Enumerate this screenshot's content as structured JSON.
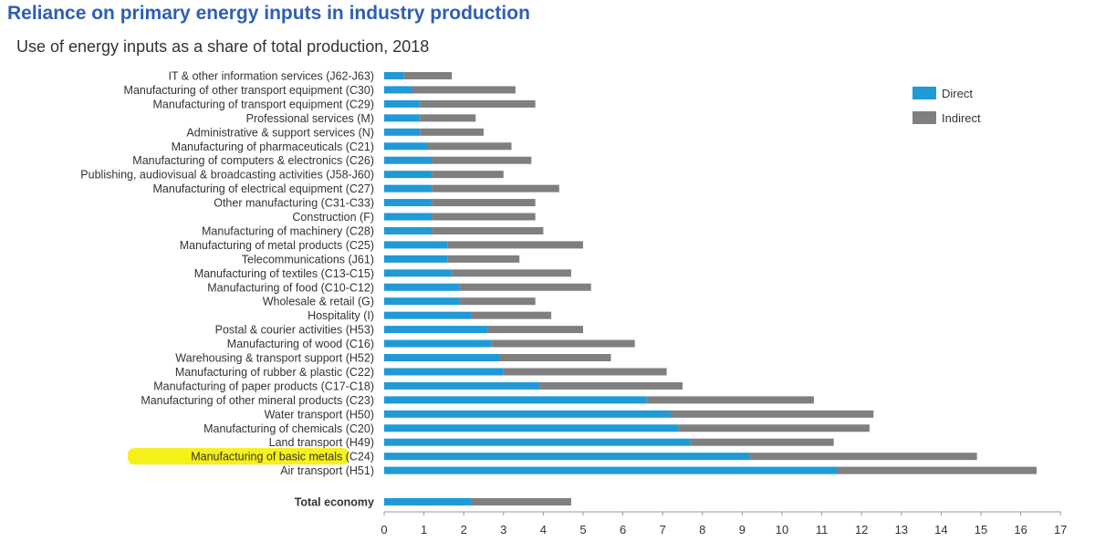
{
  "title": "Reliance on primary energy inputs in industry production",
  "subtitle": "Use of energy inputs as a share of total production, 2018",
  "highlight_color": "#f5f000",
  "chart_data": {
    "type": "bar",
    "orientation": "horizontal",
    "stacked": true,
    "categories": [
      "IT & other information services (J62-J63)",
      "Manufacturing of other transport equipment (C30)",
      "Manufacturing of transport equipment (C29)",
      "Professional services (M)",
      "Administrative & support services (N)",
      "Manufacturing of pharmaceuticals (C21)",
      "Manufacturing of computers & electronics (C26)",
      "Publishing, audiovisual & broadcasting activities (J58-J60)",
      "Manufacturing of electrical equipment (C27)",
      "Other manufacturing (C31-C33)",
      "Construction (F)",
      "Manufacturing of machinery (C28)",
      "Manufacturing of metal products (C25)",
      "Telecommunications (J61)",
      "Manufacturing of textiles (C13-C15)",
      "Manufacturing of food (C10-C12)",
      "Wholesale & retail (G)",
      "Hospitality (I)",
      "Postal & courier activities (H53)",
      "Manufacturing of wood (C16)",
      "Warehousing & transport support (H52)",
      "Manufacturing of rubber & plastic (C22)",
      "Manufacturing of paper products (C17-C18)",
      "Manufacturing of other mineral products (C23)",
      "Water transport (H50)",
      "Manufacturing of chemicals (C20)",
      "Land transport (H49)",
      "Manufacturing of basic metals (C24)",
      "Air transport (H51)",
      "Total economy"
    ],
    "highlighted_category": "Manufacturing of basic metals (C24)",
    "series": [
      {
        "name": "Direct",
        "color": "#1f9ad6",
        "values": [
          0.5,
          0.7,
          0.9,
          0.9,
          0.9,
          1.1,
          1.2,
          1.2,
          1.2,
          1.2,
          1.2,
          1.2,
          1.6,
          1.6,
          1.7,
          1.9,
          1.9,
          2.2,
          2.6,
          2.7,
          2.9,
          3.0,
          3.9,
          6.6,
          7.2,
          7.4,
          7.7,
          9.2,
          11.4,
          2.2
        ]
      },
      {
        "name": "Indirect",
        "color": "#7f7f7f",
        "values": [
          1.2,
          2.6,
          2.9,
          1.4,
          1.6,
          2.1,
          2.5,
          1.8,
          3.2,
          2.6,
          2.6,
          2.8,
          3.4,
          1.8,
          3.0,
          3.3,
          1.9,
          2.0,
          2.4,
          3.6,
          2.8,
          4.1,
          3.6,
          4.2,
          5.1,
          4.8,
          3.6,
          5.7,
          5.0,
          2.5
        ]
      }
    ],
    "xlim": [
      0,
      17
    ],
    "xticks": [
      0,
      1,
      2,
      3,
      4,
      5,
      6,
      7,
      8,
      9,
      10,
      11,
      12,
      13,
      14,
      15,
      16,
      17
    ],
    "legend": {
      "entries": [
        "Direct",
        "Indirect"
      ],
      "position": "top-right"
    },
    "grid": false
  }
}
